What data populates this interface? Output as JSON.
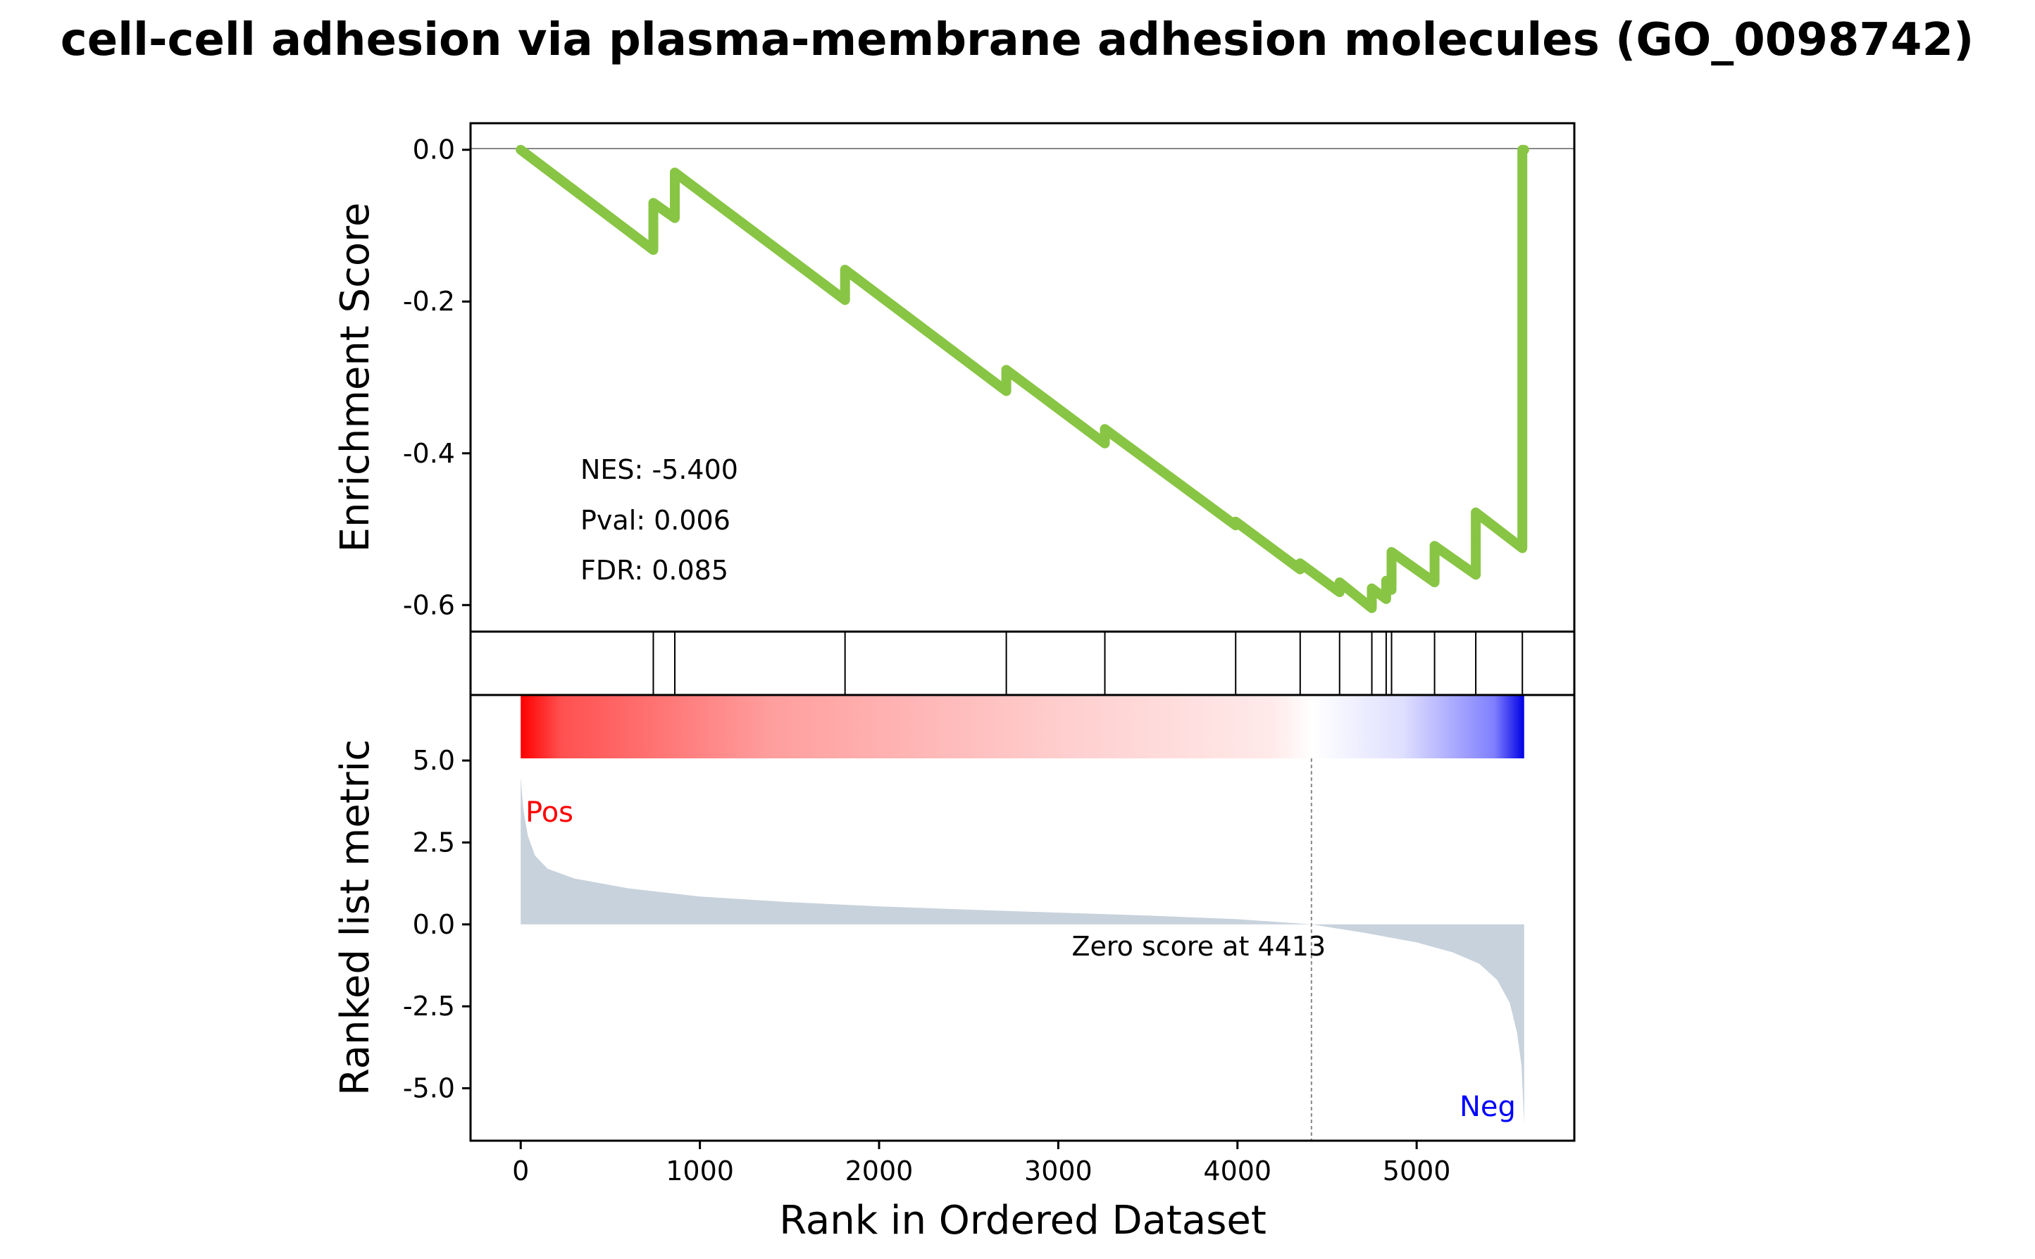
{
  "chart_data": {
    "type": "line",
    "title": "cell-cell adhesion via plasma-membrane adhesion molecules (GO_0098742)",
    "xlabel": "Rank in Ordered Dataset",
    "xlim": [
      -280,
      5880
    ],
    "x_ticks": [
      0,
      1000,
      2000,
      3000,
      4000,
      5000
    ],
    "x_tick_labels": [
      "0",
      "1000",
      "2000",
      "3000",
      "4000",
      "5000"
    ],
    "enrichment": {
      "ylabel": "Enrichment Score",
      "ylim": [
        -0.635,
        0.035
      ],
      "y_ticks": [
        0.0,
        -0.2,
        -0.4,
        -0.6
      ],
      "y_tick_labels": [
        "0.0",
        "-0.2",
        "-0.4",
        "-0.6"
      ],
      "line_color": "#88c544",
      "points": [
        [
          0,
          0.0
        ],
        [
          740,
          -0.132
        ],
        [
          740,
          -0.07
        ],
        [
          860,
          -0.09
        ],
        [
          860,
          -0.03
        ],
        [
          1810,
          -0.198
        ],
        [
          1810,
          -0.158
        ],
        [
          2710,
          -0.318
        ],
        [
          2710,
          -0.29
        ],
        [
          3260,
          -0.387
        ],
        [
          3260,
          -0.368
        ],
        [
          3990,
          -0.495
        ],
        [
          3990,
          -0.49
        ],
        [
          4350,
          -0.553
        ],
        [
          4350,
          -0.545
        ],
        [
          4570,
          -0.583
        ],
        [
          4570,
          -0.57
        ],
        [
          4750,
          -0.604
        ],
        [
          4750,
          -0.578
        ],
        [
          4830,
          -0.592
        ],
        [
          4830,
          -0.568
        ],
        [
          4860,
          -0.58
        ],
        [
          4860,
          -0.53
        ],
        [
          5100,
          -0.57
        ],
        [
          5100,
          -0.522
        ],
        [
          5330,
          -0.56
        ],
        [
          5330,
          -0.478
        ],
        [
          5590,
          -0.525
        ],
        [
          5590,
          0.0
        ],
        [
          5600,
          0.0
        ]
      ],
      "stats": [
        "NES: -5.400",
        "Pval: 0.006",
        "FDR: 0.085"
      ]
    },
    "hits": [
      740,
      860,
      1810,
      2710,
      3260,
      3990,
      4350,
      4570,
      4750,
      4830,
      4860,
      5100,
      5330,
      5590
    ],
    "ranked_metric": {
      "ylabel": "Ranked list metric",
      "ylim": [
        -6.6,
        7.0
      ],
      "y_ticks": [
        5.0,
        2.5,
        0.0,
        -2.5,
        -5.0
      ],
      "y_tick_labels": [
        "5.0",
        "2.5",
        "0.0",
        "-2.5",
        "-5.0"
      ],
      "fill_color": "#c8d2dc",
      "n_genes": 5600,
      "curve": [
        [
          0,
          4.5
        ],
        [
          15,
          3.5
        ],
        [
          40,
          2.7
        ],
        [
          80,
          2.1
        ],
        [
          150,
          1.7
        ],
        [
          300,
          1.4
        ],
        [
          600,
          1.1
        ],
        [
          1000,
          0.85
        ],
        [
          1500,
          0.68
        ],
        [
          2000,
          0.55
        ],
        [
          2500,
          0.45
        ],
        [
          3000,
          0.36
        ],
        [
          3500,
          0.27
        ],
        [
          4000,
          0.16
        ],
        [
          4413,
          0.0
        ],
        [
          4700,
          -0.25
        ],
        [
          5000,
          -0.55
        ],
        [
          5200,
          -0.85
        ],
        [
          5350,
          -1.2
        ],
        [
          5450,
          -1.7
        ],
        [
          5520,
          -2.4
        ],
        [
          5560,
          -3.3
        ],
        [
          5585,
          -4.3
        ],
        [
          5600,
          -6.1
        ]
      ],
      "pos_label": "Pos",
      "neg_label": "Neg",
      "pos_color": "#ff0000",
      "neg_color": "#0000ff",
      "zero_cross": 4413,
      "zero_label": "Zero score at 4413"
    }
  }
}
